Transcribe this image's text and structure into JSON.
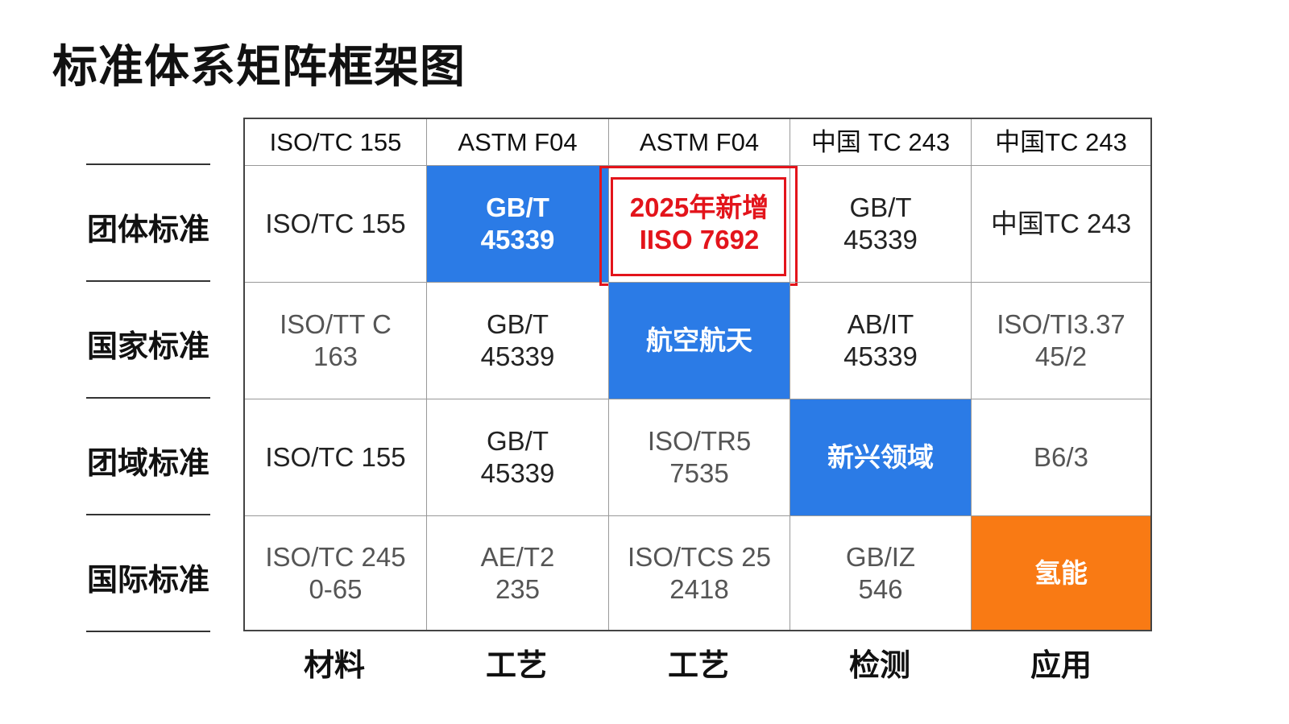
{
  "title": "标准体系矩阵框架图",
  "columns": [
    "ISO/TC 155",
    "ASTM F04",
    "ASTM F04",
    "中国 TC 243",
    "中国TC 243"
  ],
  "rows": [
    {
      "label": "团体标准",
      "cells": [
        "ISO/TC 155",
        "GB/T\n45339",
        "2025年新增\nIISO 7692",
        "GB/T\n45339",
        "中国TC 243"
      ]
    },
    {
      "label": "国家标准",
      "cells": [
        "ISO/TT C\n163",
        "GB/T\n45339",
        "航空航天",
        "AB/IT\n45339",
        "ISO/TI3.37\n45/2"
      ]
    },
    {
      "label": "团域标准",
      "cells": [
        "ISO/TC 155",
        "GB/T\n45339",
        "ISO/TR5\n7535",
        "新兴领域",
        "B6/3"
      ]
    },
    {
      "label": "国际标准",
      "cells": [
        "ISO/TC 245\n0-65",
        "AE/T2\n235",
        "ISO/TCS 25\n2418",
        "GB/IZ\n546",
        "氢能"
      ]
    }
  ],
  "bottom_labels": [
    "材料",
    "工艺",
    "工艺",
    "检测",
    "应用"
  ],
  "colors": {
    "blue": "#2b7be6",
    "orange": "#f97a14",
    "highlight": "#e3141b"
  }
}
